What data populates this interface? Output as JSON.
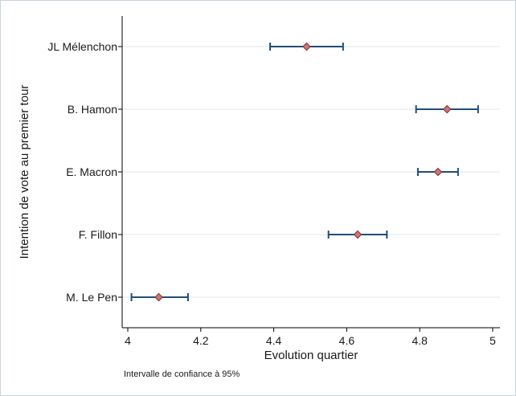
{
  "chart_data": {
    "type": "scatter",
    "subtype": "dot-plot-with-confidence-intervals",
    "title": "",
    "xlabel": "Evolution quartier",
    "ylabel": "Intention de vote au premier tour",
    "note": "Intervalle de confiance à 95%",
    "xlim": [
      4,
      5
    ],
    "xticks": [
      4,
      4.2,
      4.4,
      4.6,
      4.8,
      5
    ],
    "xtick_labels": [
      "4",
      "4.2",
      "4.4",
      "4.6",
      "4.8",
      "5"
    ],
    "grid": "horizontal",
    "categories": [
      "JL Mélenchon",
      "B. Hamon",
      "E. Macron",
      "F. Fillon",
      "M. Le Pen"
    ],
    "series": [
      {
        "values": [
          4.49,
          4.875,
          4.85,
          4.63,
          4.085
        ],
        "ci_low": [
          4.39,
          4.79,
          4.795,
          4.55,
          4.01
        ],
        "ci_high": [
          4.59,
          4.96,
          4.905,
          4.71,
          4.165
        ]
      }
    ],
    "colors": {
      "marker_fill": "#c87878",
      "marker_edge": "#8b3a3a",
      "error_bar": "#1f4e79",
      "grid": "#e3ecf1",
      "axis": "#000000"
    }
  }
}
